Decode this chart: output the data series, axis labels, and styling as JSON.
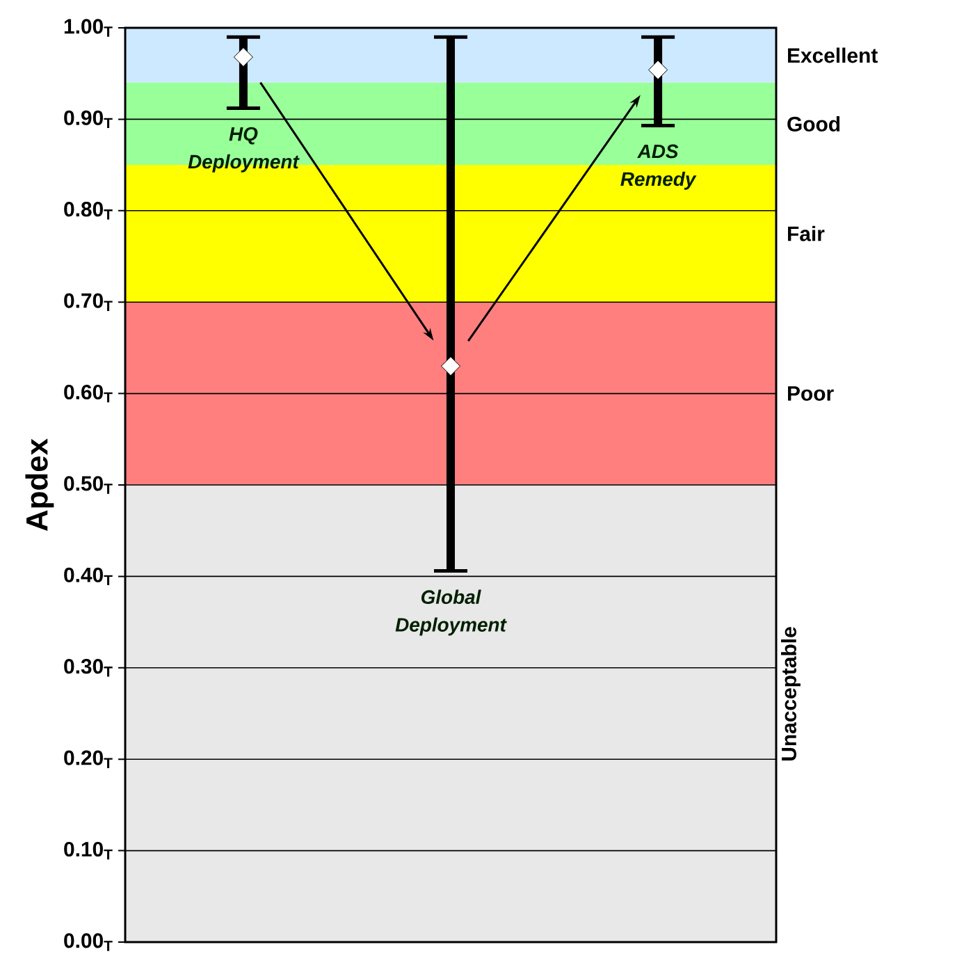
{
  "chart_data": {
    "type": "scatter",
    "ylabel": "Apdex",
    "categories": [
      "HQ Deployment",
      "Global Deployment",
      "ADS Remedy"
    ],
    "values": [
      0.968,
      0.63,
      0.954
    ],
    "errors": [
      [
        0.912,
        0.99
      ],
      [
        0.406,
        0.99
      ],
      [
        0.893,
        0.99
      ]
    ],
    "marker": "diamond",
    "grid": "y",
    "ylim": [
      0,
      1
    ],
    "yticks": [
      {
        "value": 0,
        "label": "0.00$_{T}$"
      },
      {
        "value": 0.1,
        "label": "0.10$_{T}$"
      },
      {
        "value": 0.2,
        "label": "0.20$_{T}$"
      },
      {
        "value": 0.3,
        "label": "0.30$_{T}$"
      },
      {
        "value": 0.4,
        "label": "0.40$_{T}$"
      },
      {
        "value": 0.5,
        "label": "0.50$_{T}$"
      },
      {
        "value": 0.6,
        "label": "0.60$_{T}$"
      },
      {
        "value": 0.7,
        "label": "0.70$_{T}$"
      },
      {
        "value": 0.8,
        "label": "0.80$_{T}$"
      },
      {
        "value": 0.9,
        "label": "0.90$_{T}$"
      },
      {
        "value": 1,
        "label": "1.00$_{T}$"
      }
    ],
    "bands": [
      {
        "axis": "y",
        "from": 0.94,
        "to": 1,
        "label": "Excellent",
        "color": "#cce9ff"
      },
      {
        "axis": "y",
        "from": 0.85,
        "to": 0.94,
        "label": "Good",
        "color": "#99ff99"
      },
      {
        "axis": "y",
        "from": 0.7,
        "to": 0.85,
        "label": "Fair",
        "color": "#ffff00"
      },
      {
        "axis": "y",
        "from": 0.5,
        "to": 0.7,
        "label": "Poor",
        "color": "#ff7f7f"
      },
      {
        "axis": "y",
        "from": 0,
        "to": 0.5,
        "label": "Unacceptable",
        "color": "#e8e8e8"
      }
    ]
  }
}
